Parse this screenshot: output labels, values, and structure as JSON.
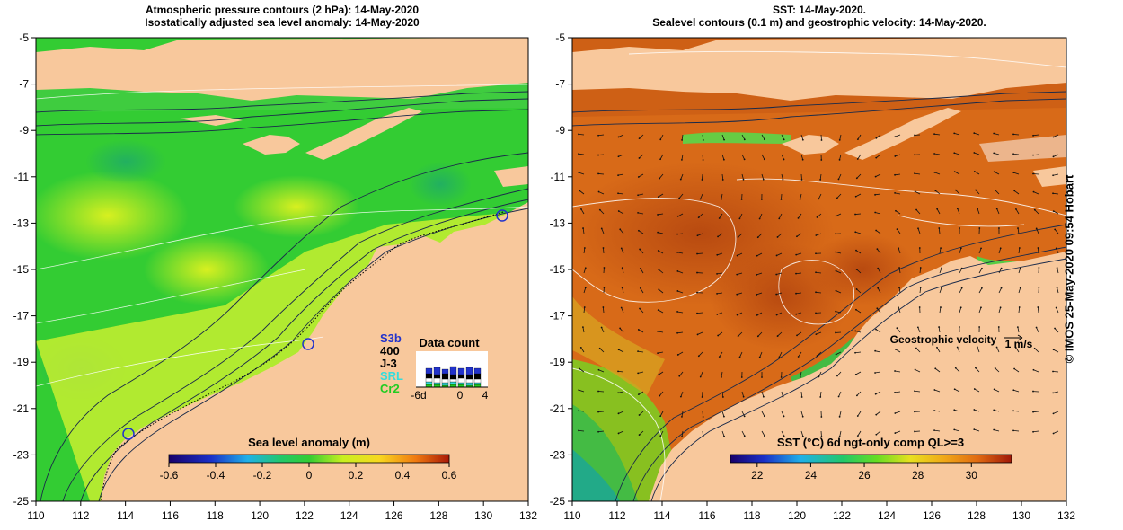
{
  "left_panel": {
    "title_line1": "Atmospheric pressure contours (2 hPa): 14-May-2020",
    "title_line2": "Isostatically adjusted sea level anomaly: 14-May-2020",
    "colorbar": {
      "title": "Sea level anomaly (m)",
      "ticks": [
        "-0.6",
        "-0.4",
        "-0.2",
        "0",
        "0.2",
        "0.4",
        "0.6"
      ],
      "range": [
        -0.6,
        0.6
      ]
    },
    "data_count": {
      "title": "Data count",
      "satellites": [
        {
          "label": "S3b",
          "color": "#2233cc"
        },
        {
          "label": "400",
          "color": "#000000"
        },
        {
          "label": "J-3",
          "color": "#000000"
        },
        {
          "label": "SRL",
          "color": "#33dddd"
        },
        {
          "label": "Cr2",
          "color": "#22cc22"
        }
      ],
      "axis_labels": [
        "-6d",
        "0",
        "4"
      ]
    }
  },
  "right_panel": {
    "title_line1": "SST: 14-May-2020.",
    "title_line2": "Sealevel contours (0.1 m) and geostrophic velocity: 14-May-2020.",
    "colorbar": {
      "title": "SST (°C) 6d ngt-only comp QL>=3",
      "ticks": [
        "22",
        "24",
        "26",
        "28",
        "30"
      ],
      "range": [
        21,
        31.5
      ]
    },
    "velocity_legend": {
      "label": "Geostrophic velocity",
      "unit": "1 m/s"
    }
  },
  "axes": {
    "x_ticks": [
      "110",
      "112",
      "114",
      "116",
      "118",
      "120",
      "122",
      "124",
      "126",
      "128",
      "130",
      "132"
    ],
    "y_ticks": [
      "-5",
      "-7",
      "-9",
      "-11",
      "-13",
      "-15",
      "-17",
      "-19",
      "-21",
      "-23",
      "-25"
    ],
    "lon_range": [
      110,
      132
    ],
    "lat_range": [
      -25,
      -5
    ]
  },
  "credit": "© IMOS 25-May-2020 09:54 Hobart",
  "colors": {
    "land": "#f8c89c",
    "sla_green": "#33cc33",
    "sla_yellow": "#d8f020",
    "sst_orange": "#d86a18",
    "sst_green": "#44bb44"
  }
}
